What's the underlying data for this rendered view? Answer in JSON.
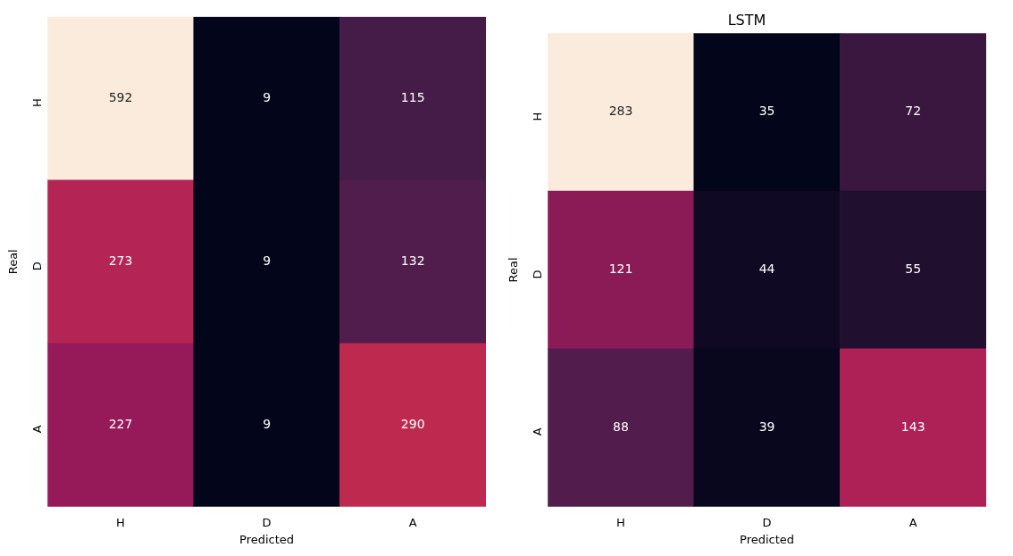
{
  "chart_data": [
    {
      "type": "heatmap",
      "categories": [
        "H",
        "D",
        "A"
      ],
      "y_categories": [
        "H",
        "D",
        "A"
      ],
      "xlabel": "Predicted",
      "ylabel": "Real",
      "data_labels": true,
      "cells": [
        [
          592,
          9,
          115
        ],
        [
          273,
          9,
          132
        ],
        [
          227,
          9,
          290
        ]
      ]
    },
    {
      "type": "heatmap",
      "title": "LSTM",
      "categories": [
        "H",
        "D",
        "A"
      ],
      "y_categories": [
        "H",
        "D",
        "A"
      ],
      "xlabel": "Predicted",
      "ylabel": "Real",
      "data_labels": true,
      "cells": [
        [
          283,
          35,
          72
        ],
        [
          121,
          44,
          55
        ],
        [
          88,
          39,
          143
        ]
      ]
    }
  ]
}
